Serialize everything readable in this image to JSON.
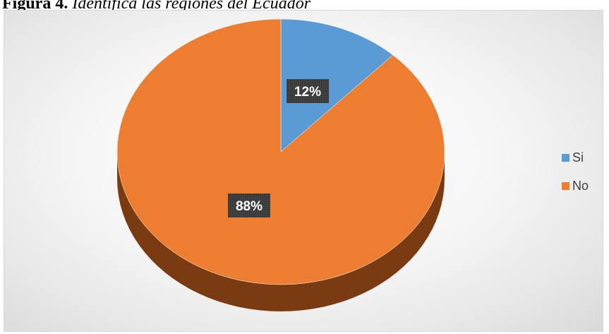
{
  "caption": {
    "lead": "Figura 4.",
    "rest": " Identifica las regiones del Ecuador"
  },
  "chart_data": {
    "type": "pie",
    "style": "3d",
    "categories": [
      "Si",
      "No"
    ],
    "values": [
      12,
      88
    ],
    "labels": [
      "12%",
      "88%"
    ],
    "colors": [
      "#5b9bd5",
      "#ed7d31"
    ],
    "side_colors": [
      "#2f5f8f",
      "#7a3a12"
    ],
    "legend_position": "right",
    "title": ""
  }
}
